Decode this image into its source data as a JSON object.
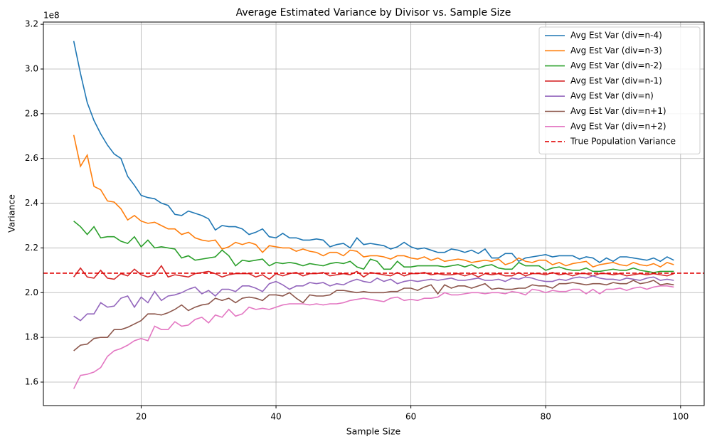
{
  "chart_data": {
    "type": "line",
    "title": "Average Estimated Variance by Divisor vs. Sample Size",
    "x_label": "Sample Size",
    "y_label": "Variance",
    "y_offset_label": "1e8",
    "x": [
      10,
      11,
      12,
      13,
      14,
      15,
      16,
      17,
      18,
      19,
      20,
      21,
      22,
      23,
      24,
      25,
      26,
      27,
      28,
      29,
      30,
      31,
      32,
      33,
      34,
      35,
      36,
      37,
      38,
      39,
      40,
      41,
      42,
      43,
      44,
      45,
      46,
      47,
      48,
      49,
      50,
      51,
      52,
      53,
      54,
      55,
      56,
      57,
      58,
      59,
      60,
      61,
      62,
      63,
      64,
      65,
      66,
      67,
      68,
      69,
      70,
      71,
      72,
      73,
      74,
      75,
      76,
      77,
      78,
      79,
      80,
      81,
      82,
      83,
      84,
      85,
      86,
      87,
      88,
      89,
      90,
      91,
      92,
      93,
      94,
      95,
      96,
      97,
      98,
      99
    ],
    "series": [
      {
        "name": "Avg Est Var (div=n-4)",
        "color": "#1f77b4",
        "values": [
          3.125,
          2.98,
          2.85,
          2.77,
          2.71,
          2.66,
          2.62,
          2.6,
          2.52,
          2.48,
          2.435,
          2.425,
          2.42,
          2.4,
          2.39,
          2.35,
          2.345,
          2.365,
          2.355,
          2.345,
          2.33,
          2.28,
          2.3,
          2.295,
          2.295,
          2.285,
          2.26,
          2.27,
          2.285,
          2.25,
          2.245,
          2.265,
          2.245,
          2.245,
          2.235,
          2.235,
          2.24,
          2.235,
          2.205,
          2.215,
          2.22,
          2.2,
          2.245,
          2.215,
          2.22,
          2.215,
          2.21,
          2.195,
          2.205,
          2.225,
          2.205,
          2.195,
          2.2,
          2.19,
          2.18,
          2.18,
          2.195,
          2.19,
          2.18,
          2.19,
          2.175,
          2.195,
          2.155,
          2.155,
          2.175,
          2.175,
          2.14,
          2.155,
          2.16,
          2.165,
          2.17,
          2.16,
          2.165,
          2.165,
          2.165,
          2.15,
          2.16,
          2.155,
          2.135,
          2.155,
          2.14,
          2.16,
          2.16,
          2.155,
          2.15,
          2.145,
          2.155,
          2.14,
          2.16,
          2.145
        ]
      },
      {
        "name": "Avg Est Var (div=n-3)",
        "color": "#ff7f0e",
        "values": [
          2.705,
          2.565,
          2.615,
          2.475,
          2.46,
          2.41,
          2.405,
          2.375,
          2.325,
          2.345,
          2.32,
          2.31,
          2.315,
          2.3,
          2.285,
          2.285,
          2.26,
          2.27,
          2.245,
          2.235,
          2.23,
          2.235,
          2.195,
          2.205,
          2.225,
          2.215,
          2.225,
          2.215,
          2.18,
          2.21,
          2.205,
          2.2,
          2.2,
          2.185,
          2.195,
          2.185,
          2.18,
          2.165,
          2.18,
          2.18,
          2.165,
          2.19,
          2.185,
          2.16,
          2.165,
          2.165,
          2.16,
          2.15,
          2.165,
          2.165,
          2.155,
          2.15,
          2.16,
          2.145,
          2.155,
          2.14,
          2.145,
          2.15,
          2.145,
          2.135,
          2.14,
          2.145,
          2.14,
          2.15,
          2.125,
          2.135,
          2.155,
          2.14,
          2.135,
          2.145,
          2.145,
          2.125,
          2.135,
          2.12,
          2.13,
          2.135,
          2.14,
          2.115,
          2.125,
          2.13,
          2.135,
          2.125,
          2.12,
          2.135,
          2.125,
          2.12,
          2.13,
          2.115,
          2.135,
          2.125
        ]
      },
      {
        "name": "Avg Est Var (div=n-2)",
        "color": "#2ca02c",
        "values": [
          2.32,
          2.295,
          2.26,
          2.295,
          2.245,
          2.25,
          2.25,
          2.23,
          2.22,
          2.25,
          2.205,
          2.235,
          2.2,
          2.205,
          2.2,
          2.195,
          2.155,
          2.165,
          2.145,
          2.15,
          2.155,
          2.16,
          2.19,
          2.165,
          2.12,
          2.145,
          2.14,
          2.145,
          2.15,
          2.12,
          2.135,
          2.13,
          2.135,
          2.13,
          2.12,
          2.13,
          2.125,
          2.12,
          2.13,
          2.135,
          2.13,
          2.14,
          2.115,
          2.105,
          2.15,
          2.14,
          2.105,
          2.105,
          2.14,
          2.115,
          2.115,
          2.12,
          2.12,
          2.12,
          2.12,
          2.115,
          2.12,
          2.125,
          2.115,
          2.125,
          2.11,
          2.12,
          2.125,
          2.11,
          2.105,
          2.105,
          2.135,
          2.12,
          2.12,
          2.12,
          2.1,
          2.11,
          2.115,
          2.105,
          2.1,
          2.1,
          2.11,
          2.095,
          2.095,
          2.1,
          2.105,
          2.1,
          2.1,
          2.11,
          2.1,
          2.095,
          2.09,
          2.095,
          2.095,
          2.095
        ]
      },
      {
        "name": "Avg Est Var (div=n-1)",
        "color": "#d62728",
        "values": [
          2.07,
          2.11,
          2.07,
          2.065,
          2.1,
          2.065,
          2.06,
          2.085,
          2.075,
          2.105,
          2.08,
          2.07,
          2.08,
          2.12,
          2.07,
          2.08,
          2.075,
          2.07,
          2.085,
          2.09,
          2.095,
          2.085,
          2.07,
          2.08,
          2.085,
          2.085,
          2.085,
          2.07,
          2.08,
          2.06,
          2.085,
          2.075,
          2.085,
          2.09,
          2.075,
          2.085,
          2.085,
          2.09,
          2.075,
          2.08,
          2.085,
          2.08,
          2.095,
          2.07,
          2.09,
          2.085,
          2.08,
          2.075,
          2.09,
          2.075,
          2.085,
          2.085,
          2.09,
          2.08,
          2.085,
          2.08,
          2.08,
          2.085,
          2.075,
          2.085,
          2.07,
          2.085,
          2.08,
          2.085,
          2.075,
          2.075,
          2.09,
          2.075,
          2.085,
          2.085,
          2.08,
          2.09,
          2.08,
          2.085,
          2.075,
          2.085,
          2.085,
          2.075,
          2.085,
          2.085,
          2.08,
          2.085,
          2.075,
          2.08,
          2.085,
          2.08,
          2.085,
          2.08,
          2.075,
          2.085
        ]
      },
      {
        "name": "Avg Est Var (div=n)",
        "color": "#9467bd",
        "values": [
          1.895,
          1.875,
          1.905,
          1.905,
          1.955,
          1.935,
          1.94,
          1.975,
          1.985,
          1.935,
          1.98,
          1.955,
          2.005,
          1.965,
          1.985,
          1.99,
          2.0,
          2.015,
          2.025,
          1.995,
          2.01,
          1.985,
          2.015,
          2.015,
          2.005,
          2.03,
          2.03,
          2.02,
          2.005,
          2.04,
          2.05,
          2.035,
          2.015,
          2.03,
          2.03,
          2.045,
          2.04,
          2.045,
          2.03,
          2.04,
          2.035,
          2.05,
          2.06,
          2.05,
          2.045,
          2.065,
          2.05,
          2.06,
          2.04,
          2.05,
          2.055,
          2.05,
          2.055,
          2.06,
          2.055,
          2.06,
          2.065,
          2.055,
          2.055,
          2.06,
          2.065,
          2.055,
          2.055,
          2.06,
          2.05,
          2.065,
          2.06,
          2.07,
          2.065,
          2.055,
          2.05,
          2.05,
          2.06,
          2.055,
          2.065,
          2.07,
          2.065,
          2.075,
          2.065,
          2.06,
          2.06,
          2.055,
          2.065,
          2.06,
          2.055,
          2.065,
          2.07,
          2.055,
          2.06,
          2.055
        ]
      },
      {
        "name": "Avg Est Var (div=n+1)",
        "color": "#8c564b",
        "values": [
          1.74,
          1.765,
          1.77,
          1.795,
          1.8,
          1.8,
          1.835,
          1.835,
          1.845,
          1.86,
          1.875,
          1.905,
          1.905,
          1.9,
          1.91,
          1.925,
          1.945,
          1.92,
          1.935,
          1.945,
          1.95,
          1.975,
          1.965,
          1.975,
          1.955,
          1.975,
          1.98,
          1.975,
          1.965,
          1.99,
          1.99,
          1.985,
          2.0,
          1.975,
          1.955,
          1.99,
          1.985,
          1.985,
          1.99,
          2.01,
          2.01,
          2.005,
          2.0,
          2.005,
          2.0,
          2.0,
          2.0,
          2.005,
          2.005,
          2.02,
          2.02,
          2.01,
          2.025,
          2.035,
          1.995,
          2.035,
          2.02,
          2.03,
          2.03,
          2.02,
          2.03,
          2.04,
          2.015,
          2.02,
          2.015,
          2.015,
          2.02,
          2.02,
          2.035,
          2.03,
          2.03,
          2.02,
          2.04,
          2.04,
          2.045,
          2.04,
          2.035,
          2.04,
          2.04,
          2.035,
          2.045,
          2.04,
          2.04,
          2.055,
          2.04,
          2.045,
          2.055,
          2.035,
          2.04,
          2.035
        ]
      },
      {
        "name": "Avg Est Var (div=n+2)",
        "color": "#e377c2",
        "values": [
          1.57,
          1.63,
          1.635,
          1.645,
          1.665,
          1.715,
          1.74,
          1.75,
          1.765,
          1.785,
          1.795,
          1.785,
          1.85,
          1.835,
          1.835,
          1.87,
          1.85,
          1.855,
          1.88,
          1.89,
          1.865,
          1.9,
          1.89,
          1.925,
          1.895,
          1.905,
          1.935,
          1.925,
          1.93,
          1.925,
          1.935,
          1.945,
          1.95,
          1.95,
          1.95,
          1.945,
          1.95,
          1.945,
          1.95,
          1.95,
          1.955,
          1.965,
          1.97,
          1.975,
          1.97,
          1.965,
          1.96,
          1.975,
          1.98,
          1.965,
          1.97,
          1.965,
          1.975,
          1.975,
          1.98,
          2.0,
          1.99,
          1.99,
          1.995,
          2.0,
          2.0,
          1.995,
          2.0,
          2.0,
          1.995,
          2.005,
          2.0,
          1.99,
          2.015,
          2.01,
          2.0,
          2.01,
          2.005,
          2.005,
          2.015,
          2.015,
          1.995,
          2.015,
          1.995,
          2.015,
          2.015,
          2.02,
          2.01,
          2.02,
          2.025,
          2.015,
          2.025,
          2.03,
          2.03,
          2.025
        ]
      }
    ],
    "reference": {
      "name": "True Population Variance",
      "value": 2.087,
      "color": "#e00000"
    },
    "xlim": [
      5.5,
      103.5
    ],
    "ylim": [
      1.495,
      3.21
    ],
    "xticks": [
      20,
      40,
      60,
      80,
      100
    ],
    "yticks": [
      1.6,
      1.8,
      {
        "value": 2,
        "label": "2.0"
      },
      2.2,
      2.4,
      2.6,
      2.8,
      {
        "value": 3,
        "label": "3.0"
      },
      3.2
    ],
    "grid": true,
    "legend": "upper right"
  }
}
